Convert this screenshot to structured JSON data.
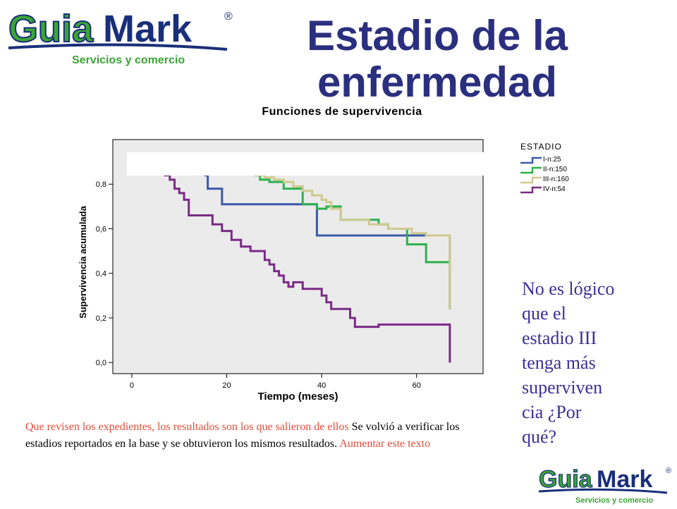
{
  "logo": {
    "brand_part1": "Guia",
    "brand_part2": "Mark",
    "registered": "®",
    "tagline": "Servicios y comercio"
  },
  "slide_title": "Estadio de la enfermedad",
  "note": "No es lógico que el estadio III tenga más superviven cia ¿Por qué?",
  "bottom_text": {
    "red_part1": "Que revisen los expedientes, los resultados son los que salieron de ellos",
    "black_part": " Se volvió a verificar los estadios reportados en la base y se obtuvieron los mismos resultados.",
    "red_part2": " Aumentar este texto"
  },
  "colors": {
    "title": "#2b2f7f",
    "note": "#3b2f9a",
    "red_text": "#e64b3b",
    "plot_bg": "#ebebeb",
    "logo_green": "#3aa535",
    "logo_blue": "#1a2f7a"
  },
  "chart_data": {
    "type": "line",
    "title": "Funciones de supervivencia",
    "xlabel": "Tiempo (meses)",
    "ylabel": "Supervivencia acumulada",
    "xlim": [
      -4,
      74
    ],
    "ylim": [
      -0.05,
      1.0
    ],
    "xticks": [
      0,
      20,
      40,
      60
    ],
    "yticks": [
      0.0,
      0.2,
      0.4,
      0.6,
      0.8
    ],
    "ytick_labels": [
      "0,0",
      "0,2",
      "0,4",
      "0,6",
      "0,8"
    ],
    "grid": false,
    "legend_title": "ESTADIO",
    "legend_position": "right",
    "series": [
      {
        "name": "I-n:25",
        "color": "#3b59a8",
        "x": [
          15,
          15.5,
          15.5,
          16,
          16,
          19,
          19,
          39,
          39,
          67,
          67
        ],
        "y": [
          0.88,
          0.88,
          0.84,
          0.84,
          0.78,
          0.78,
          0.71,
          0.71,
          0.57,
          0.57,
          0.24
        ]
      },
      {
        "name": "II-n:150",
        "color": "#2eb14e",
        "x": [
          17,
          23,
          23,
          24,
          24,
          26,
          26,
          27,
          27,
          29,
          29,
          32,
          32,
          36,
          36,
          39,
          39,
          41,
          41,
          44,
          44,
          52,
          52,
          54,
          54,
          58,
          58,
          62,
          62,
          67,
          67
        ],
        "y": [
          0.88,
          0.88,
          0.87,
          0.87,
          0.85,
          0.85,
          0.84,
          0.84,
          0.82,
          0.82,
          0.81,
          0.81,
          0.78,
          0.78,
          0.71,
          0.71,
          0.69,
          0.69,
          0.7,
          0.7,
          0.64,
          0.64,
          0.62,
          0.62,
          0.6,
          0.6,
          0.53,
          0.53,
          0.45,
          0.45,
          0.24
        ]
      },
      {
        "name": "III-n:160",
        "color": "#cfca8f",
        "x": [
          17,
          24,
          24,
          26,
          26,
          28,
          28,
          30,
          30,
          32,
          32,
          34,
          34,
          36,
          36,
          38,
          38,
          40,
          40,
          41,
          41,
          42,
          42,
          44,
          44,
          50,
          50,
          54,
          54,
          59,
          59,
          62,
          62,
          67,
          67
        ],
        "y": [
          0.88,
          0.88,
          0.86,
          0.86,
          0.84,
          0.84,
          0.83,
          0.83,
          0.82,
          0.82,
          0.81,
          0.81,
          0.79,
          0.79,
          0.77,
          0.77,
          0.75,
          0.75,
          0.73,
          0.73,
          0.72,
          0.72,
          0.69,
          0.69,
          0.64,
          0.64,
          0.62,
          0.62,
          0.6,
          0.6,
          0.58,
          0.58,
          0.57,
          0.57,
          0.24
        ]
      },
      {
        "name": "IV-n:54",
        "color": "#7a2b86",
        "x": [
          5,
          5.5,
          5.5,
          6,
          6,
          7,
          7,
          8,
          8,
          9,
          9,
          10,
          10,
          11,
          11,
          12,
          12,
          17,
          17,
          19,
          19,
          21,
          21,
          23,
          23,
          25,
          25,
          28,
          28,
          29,
          29,
          30,
          30,
          31,
          31,
          32,
          32,
          33,
          33,
          34,
          34,
          36,
          36,
          40,
          40,
          41,
          41,
          42,
          42,
          46,
          46,
          47,
          47,
          52,
          52,
          67,
          67
        ],
        "y": [
          0.92,
          0.92,
          0.89,
          0.89,
          0.86,
          0.86,
          0.84,
          0.84,
          0.82,
          0.82,
          0.78,
          0.78,
          0.76,
          0.76,
          0.73,
          0.73,
          0.66,
          0.66,
          0.62,
          0.62,
          0.59,
          0.59,
          0.55,
          0.55,
          0.52,
          0.52,
          0.5,
          0.5,
          0.46,
          0.46,
          0.44,
          0.44,
          0.41,
          0.41,
          0.39,
          0.39,
          0.36,
          0.36,
          0.34,
          0.34,
          0.36,
          0.36,
          0.33,
          0.33,
          0.3,
          0.3,
          0.27,
          0.27,
          0.24,
          0.24,
          0.2,
          0.2,
          0.16,
          0.16,
          0.17,
          0.17,
          0.0
        ]
      }
    ]
  }
}
